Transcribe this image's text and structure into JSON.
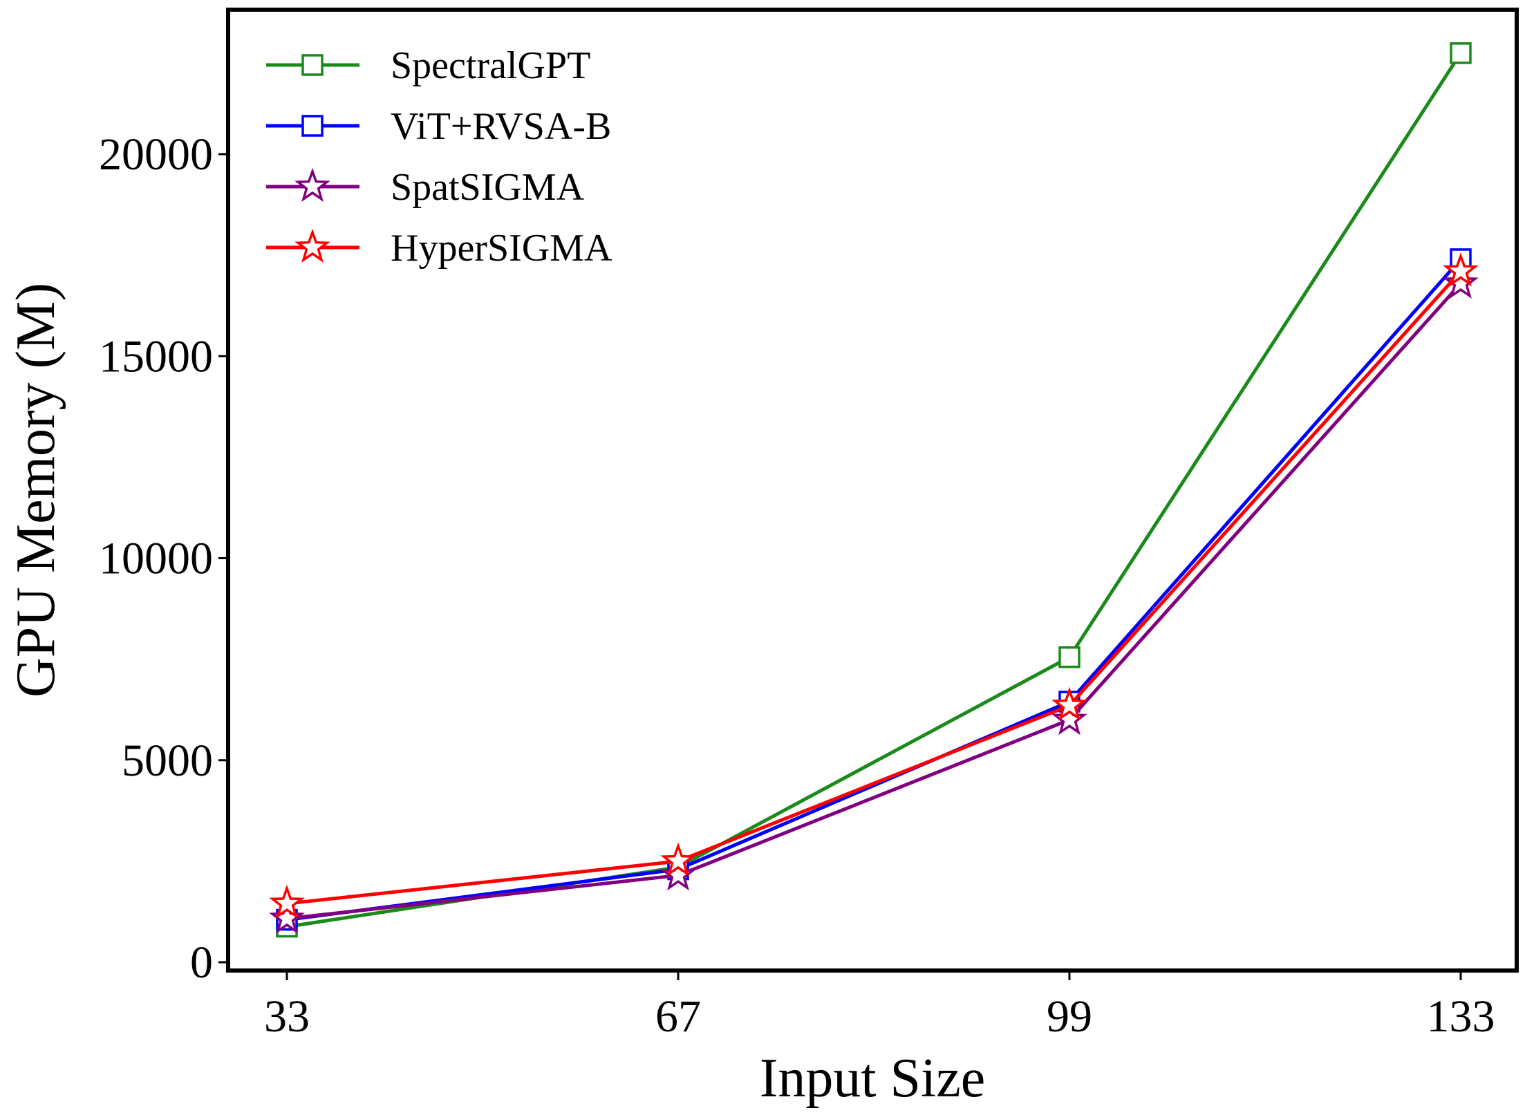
{
  "chart_data": {
    "type": "line",
    "xlabel": "Input Size",
    "ylabel": "GPU Memory (M)",
    "categories": [
      "33",
      "67",
      "99",
      "133"
    ],
    "yticks": [
      "0",
      "5000",
      "10000",
      "15000",
      "20000"
    ],
    "ylim": [
      -400,
      23400
    ],
    "grid": false,
    "legend_position": "top-left",
    "series": [
      {
        "name": "SpectralGPT",
        "color": "#1a8a1a",
        "marker": "square",
        "values": [
          880,
          2350,
          7550,
          22500
        ]
      },
      {
        "name": "ViT+RVSA-B",
        "color": "#0000ff",
        "marker": "square",
        "values": [
          1050,
          2300,
          6450,
          17400
        ]
      },
      {
        "name": "SpatSIGMA",
        "color": "#800080",
        "marker": "star",
        "values": [
          1080,
          2150,
          6000,
          16800
        ]
      },
      {
        "name": "HyperSIGMA",
        "color": "#ff0000",
        "marker": "star",
        "values": [
          1450,
          2500,
          6350,
          17100
        ]
      }
    ]
  }
}
